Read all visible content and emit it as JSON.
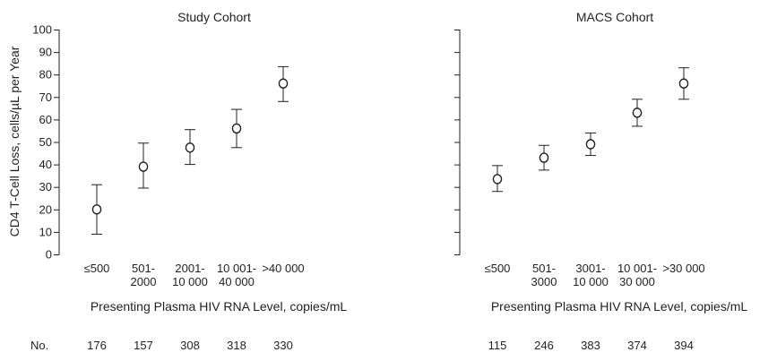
{
  "figure": {
    "ylabel": "CD4 T-Cell Loss, cells/µL per Year",
    "count_row_label": "No."
  },
  "chart_data": [
    {
      "type": "scatter",
      "title": "Study Cohort",
      "xlabel": "Presenting Plasma HIV RNA Level, copies/mL",
      "ylabel": "CD4 T-Cell Loss, cells/µL per Year",
      "ylim": [
        0,
        100
      ],
      "yticks": [
        0,
        10,
        20,
        30,
        40,
        50,
        60,
        70,
        80,
        90,
        100
      ],
      "grid": false,
      "categories": [
        [
          "≤500"
        ],
        [
          "501-",
          "2000"
        ],
        [
          "2001-",
          "10 000"
        ],
        [
          "10 001-",
          "40 000"
        ],
        [
          ">40 000"
        ]
      ],
      "values": [
        20,
        39,
        47.5,
        56,
        76
      ],
      "error_low": [
        9,
        29.5,
        40,
        47.5,
        68
      ],
      "error_high": [
        31,
        49.5,
        55.5,
        64.5,
        83.5
      ],
      "counts": [
        "176",
        "157",
        "308",
        "318",
        "330"
      ]
    },
    {
      "type": "scatter",
      "title": "MACS Cohort",
      "xlabel": "Presenting Plasma HIV RNA Level, copies/mL",
      "ylim": [
        0,
        100
      ],
      "grid": false,
      "categories": [
        [
          "≤500"
        ],
        [
          "501-",
          "3000"
        ],
        [
          "3001-",
          "10 000"
        ],
        [
          "10 001-",
          "30 000"
        ],
        [
          ">30 000"
        ]
      ],
      "values": [
        33.5,
        43,
        49,
        63,
        76
      ],
      "error_low": [
        28,
        37.5,
        44,
        57,
        69
      ],
      "error_high": [
        39.5,
        48.5,
        54,
        69,
        83
      ],
      "counts": [
        "115",
        "246",
        "383",
        "374",
        "394"
      ]
    }
  ]
}
